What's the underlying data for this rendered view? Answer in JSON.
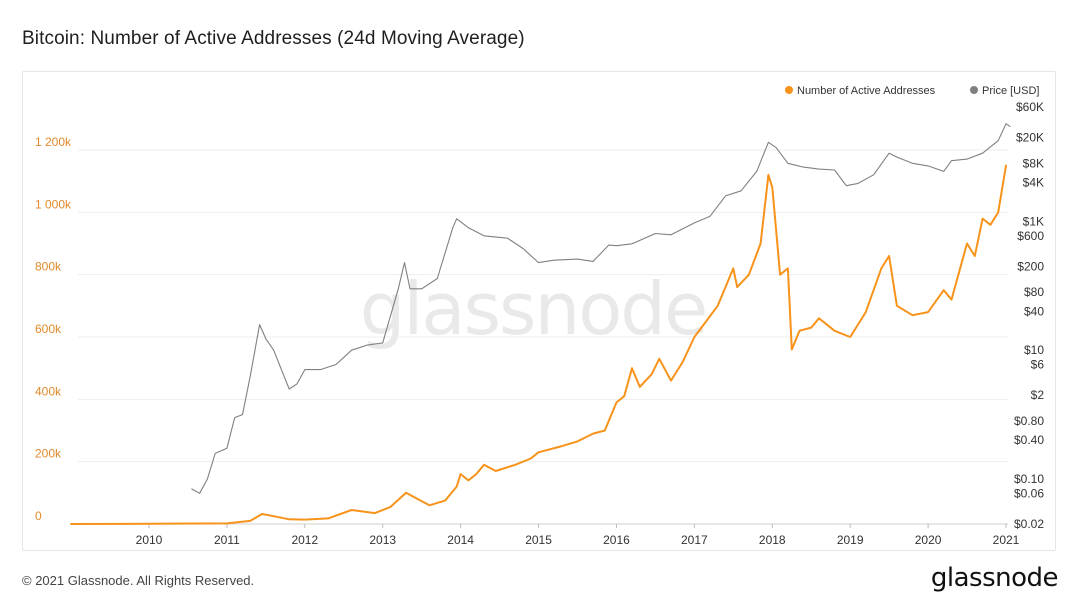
{
  "title": "Bitcoin: Number of Active Addresses (24d Moving Average)",
  "footer": "© 2021 Glassnode. All Rights Reserved.",
  "brand": "glassnode",
  "watermark": "glassnode",
  "colors": {
    "addresses": "#f7931a",
    "price": "#808080",
    "grid": "#eeeeee"
  },
  "chart_data": {
    "type": "line",
    "title": "Bitcoin: Number of Active Addresses (24d Moving Average)",
    "legend_position": "top-right",
    "grid": true,
    "x_ticks": [
      "2010",
      "2011",
      "2012",
      "2013",
      "2014",
      "2015",
      "2016",
      "2017",
      "2018",
      "2019",
      "2020",
      "2021"
    ],
    "left_axis": {
      "ticks": [
        "0",
        "200k",
        "400k",
        "600k",
        "800k",
        "1 000k",
        "1 200k"
      ],
      "tick_values": [
        0,
        200000,
        400000,
        600000,
        800000,
        1000000,
        1200000
      ],
      "range": [
        0,
        1370000
      ]
    },
    "right_axis": {
      "scale": "log",
      "ticks": [
        "$60K",
        "$20K",
        "$8K",
        "$4K",
        "$1K",
        "$600",
        "$200",
        "$80",
        "$40",
        "$10",
        "$6",
        "$2",
        "$0.80",
        "$0.40",
        "$0.10",
        "$0.06",
        "$0.02"
      ],
      "tick_values": [
        60000,
        20000,
        8000,
        4000,
        1000,
        600,
        200,
        80,
        40,
        10,
        6,
        2,
        0.8,
        0.4,
        0.1,
        0.06,
        0.02
      ],
      "range": [
        0.02,
        60000
      ]
    },
    "series": [
      {
        "name": "Number of Active Addresses",
        "axis": "left",
        "color": "#f7931a",
        "points": [
          [
            2009.0,
            0
          ],
          [
            2010.0,
            500
          ],
          [
            2011.0,
            2000
          ],
          [
            2011.3,
            10000
          ],
          [
            2011.45,
            32000
          ],
          [
            2011.6,
            25000
          ],
          [
            2011.8,
            15000
          ],
          [
            2012.0,
            14000
          ],
          [
            2012.3,
            18000
          ],
          [
            2012.6,
            45000
          ],
          [
            2012.9,
            35000
          ],
          [
            2013.1,
            55000
          ],
          [
            2013.3,
            100000
          ],
          [
            2013.45,
            80000
          ],
          [
            2013.6,
            60000
          ],
          [
            2013.8,
            75000
          ],
          [
            2013.95,
            120000
          ],
          [
            2014.0,
            160000
          ],
          [
            2014.1,
            140000
          ],
          [
            2014.2,
            160000
          ],
          [
            2014.3,
            190000
          ],
          [
            2014.45,
            170000
          ],
          [
            2014.7,
            190000
          ],
          [
            2014.9,
            210000
          ],
          [
            2015.0,
            230000
          ],
          [
            2015.3,
            250000
          ],
          [
            2015.5,
            265000
          ],
          [
            2015.7,
            290000
          ],
          [
            2015.85,
            300000
          ],
          [
            2016.0,
            390000
          ],
          [
            2016.1,
            410000
          ],
          [
            2016.2,
            500000
          ],
          [
            2016.3,
            440000
          ],
          [
            2016.45,
            480000
          ],
          [
            2016.55,
            530000
          ],
          [
            2016.7,
            460000
          ],
          [
            2016.85,
            520000
          ],
          [
            2017.0,
            600000
          ],
          [
            2017.15,
            650000
          ],
          [
            2017.3,
            700000
          ],
          [
            2017.5,
            820000
          ],
          [
            2017.55,
            760000
          ],
          [
            2017.7,
            800000
          ],
          [
            2017.85,
            900000
          ],
          [
            2017.95,
            1120000
          ],
          [
            2018.0,
            1080000
          ],
          [
            2018.1,
            800000
          ],
          [
            2018.2,
            820000
          ],
          [
            2018.25,
            560000
          ],
          [
            2018.35,
            620000
          ],
          [
            2018.5,
            630000
          ],
          [
            2018.6,
            660000
          ],
          [
            2018.8,
            620000
          ],
          [
            2019.0,
            600000
          ],
          [
            2019.2,
            680000
          ],
          [
            2019.4,
            820000
          ],
          [
            2019.5,
            860000
          ],
          [
            2019.6,
            700000
          ],
          [
            2019.8,
            670000
          ],
          [
            2020.0,
            680000
          ],
          [
            2020.2,
            750000
          ],
          [
            2020.3,
            720000
          ],
          [
            2020.5,
            900000
          ],
          [
            2020.6,
            860000
          ],
          [
            2020.7,
            980000
          ],
          [
            2020.8,
            960000
          ],
          [
            2020.9,
            1000000
          ],
          [
            2021.0,
            1150000
          ]
        ]
      },
      {
        "name": "Price [USD]",
        "axis": "right",
        "color": "#808080",
        "points": [
          [
            2010.55,
            0.07
          ],
          [
            2010.65,
            0.06
          ],
          [
            2010.75,
            0.1
          ],
          [
            2010.85,
            0.25
          ],
          [
            2011.0,
            0.3
          ],
          [
            2011.1,
            0.9
          ],
          [
            2011.2,
            1.0
          ],
          [
            2011.3,
            4.0
          ],
          [
            2011.42,
            25
          ],
          [
            2011.5,
            15
          ],
          [
            2011.6,
            10
          ],
          [
            2011.7,
            5
          ],
          [
            2011.8,
            2.5
          ],
          [
            2011.9,
            3.0
          ],
          [
            2012.0,
            5
          ],
          [
            2012.2,
            5
          ],
          [
            2012.4,
            6
          ],
          [
            2012.6,
            10
          ],
          [
            2012.8,
            12
          ],
          [
            2013.0,
            13
          ],
          [
            2013.2,
            90
          ],
          [
            2013.28,
            230
          ],
          [
            2013.35,
            90
          ],
          [
            2013.5,
            90
          ],
          [
            2013.7,
            130
          ],
          [
            2013.9,
            800
          ],
          [
            2013.95,
            1100
          ],
          [
            2014.1,
            800
          ],
          [
            2014.3,
            600
          ],
          [
            2014.6,
            550
          ],
          [
            2014.8,
            380
          ],
          [
            2015.0,
            230
          ],
          [
            2015.2,
            250
          ],
          [
            2015.5,
            260
          ],
          [
            2015.7,
            240
          ],
          [
            2015.9,
            430
          ],
          [
            2016.0,
            420
          ],
          [
            2016.2,
            450
          ],
          [
            2016.5,
            650
          ],
          [
            2016.7,
            620
          ],
          [
            2017.0,
            950
          ],
          [
            2017.2,
            1200
          ],
          [
            2017.4,
            2500
          ],
          [
            2017.6,
            3000
          ],
          [
            2017.8,
            6000
          ],
          [
            2017.95,
            17000
          ],
          [
            2018.05,
            14000
          ],
          [
            2018.2,
            8000
          ],
          [
            2018.4,
            7000
          ],
          [
            2018.6,
            6500
          ],
          [
            2018.8,
            6300
          ],
          [
            2018.95,
            3600
          ],
          [
            2019.1,
            3900
          ],
          [
            2019.3,
            5300
          ],
          [
            2019.5,
            11500
          ],
          [
            2019.6,
            10000
          ],
          [
            2019.8,
            8000
          ],
          [
            2020.0,
            7300
          ],
          [
            2020.2,
            6000
          ],
          [
            2020.3,
            8800
          ],
          [
            2020.5,
            9300
          ],
          [
            2020.7,
            11500
          ],
          [
            2020.9,
            18000
          ],
          [
            2021.0,
            33000
          ],
          [
            2021.05,
            30000
          ]
        ]
      }
    ]
  }
}
